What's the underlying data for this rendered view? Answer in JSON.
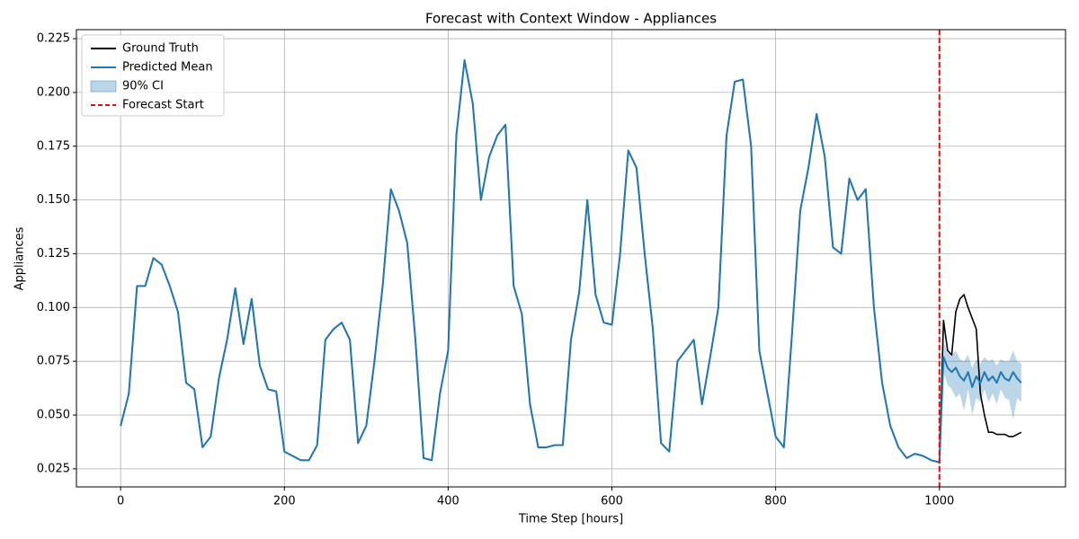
{
  "chart_data": {
    "type": "line",
    "title": "Forecast with Context Window - Appliances",
    "xlabel": "Time Step [hours]",
    "ylabel": "Appliances",
    "xlim": [
      -54,
      1154
    ],
    "ylim": [
      0.0166,
      0.2292
    ],
    "xticks": [
      0,
      200,
      400,
      600,
      800,
      1000
    ],
    "yticks": [
      0.025,
      {
        "value": 0.05,
        "label": "0.050"
      },
      0.075,
      {
        "value": 0.1,
        "label": "0.100"
      },
      0.125,
      {
        "value": 0.15,
        "label": "0.150"
      },
      0.175,
      {
        "value": 0.2,
        "label": "0.200"
      },
      0.225
    ],
    "grid": true,
    "legend": "upper left",
    "x": [
      0,
      10,
      20,
      30,
      40,
      50,
      60,
      70,
      80,
      90,
      100,
      110,
      120,
      130,
      140,
      150,
      160,
      170,
      180,
      190,
      200,
      210,
      220,
      230,
      240,
      250,
      260,
      270,
      280,
      290,
      300,
      310,
      320,
      330,
      340,
      350,
      360,
      370,
      380,
      390,
      400,
      410,
      420,
      430,
      440,
      450,
      460,
      470,
      480,
      490,
      500,
      510,
      520,
      530,
      540,
      550,
      560,
      570,
      580,
      590,
      600,
      610,
      620,
      630,
      640,
      650,
      660,
      670,
      680,
      690,
      700,
      710,
      720,
      730,
      740,
      750,
      760,
      770,
      780,
      790,
      800,
      810,
      820,
      830,
      840,
      850,
      860,
      870,
      880,
      890,
      900,
      910,
      920,
      930,
      940,
      950,
      960,
      970,
      980,
      990,
      1000,
      1005,
      1010,
      1015,
      1020,
      1025,
      1030,
      1035,
      1040,
      1045,
      1050,
      1055,
      1060,
      1065,
      1070,
      1075,
      1080,
      1085,
      1090,
      1095,
      1100
    ],
    "series": [
      {
        "name": "Ground Truth",
        "color": "#000000",
        "values": [
          0.045,
          0.06,
          0.11,
          0.11,
          0.123,
          0.12,
          0.11,
          0.098,
          0.065,
          0.062,
          0.035,
          0.04,
          0.067,
          0.085,
          0.109,
          0.083,
          0.104,
          0.073,
          0.062,
          0.061,
          0.033,
          0.031,
          0.029,
          0.029,
          0.036,
          0.085,
          0.09,
          0.093,
          0.085,
          0.037,
          0.045,
          0.075,
          0.11,
          0.155,
          0.145,
          0.13,
          0.085,
          0.03,
          0.029,
          0.06,
          0.08,
          0.18,
          0.215,
          0.195,
          0.15,
          0.17,
          0.18,
          0.185,
          0.11,
          0.097,
          0.055,
          0.035,
          0.035,
          0.036,
          0.036,
          0.085,
          0.107,
          0.15,
          0.106,
          0.093,
          0.092,
          0.125,
          0.173,
          0.165,
          0.125,
          0.09,
          0.037,
          0.033,
          0.075,
          0.08,
          0.085,
          0.055,
          0.077,
          0.1,
          0.18,
          0.205,
          0.206,
          0.175,
          0.08,
          0.06,
          0.04,
          0.035,
          0.088,
          0.145,
          0.165,
          0.19,
          0.17,
          0.128,
          0.125,
          0.16,
          0.15,
          0.155,
          0.1,
          0.065,
          0.045,
          0.035,
          0.03,
          0.032,
          0.031,
          0.029,
          0.028,
          0.094,
          0.08,
          0.078,
          0.098,
          0.104,
          0.106,
          0.1,
          0.095,
          0.09,
          0.06,
          0.05,
          0.042,
          0.042,
          0.041,
          0.041,
          0.041,
          0.04,
          0.04,
          0.041,
          0.042
        ]
      },
      {
        "name": "Predicted Mean",
        "color": "#1f77b4",
        "values": [
          0.045,
          0.06,
          0.11,
          0.11,
          0.123,
          0.12,
          0.11,
          0.098,
          0.065,
          0.062,
          0.035,
          0.04,
          0.067,
          0.085,
          0.109,
          0.083,
          0.104,
          0.073,
          0.062,
          0.061,
          0.033,
          0.031,
          0.029,
          0.029,
          0.036,
          0.085,
          0.09,
          0.093,
          0.085,
          0.037,
          0.045,
          0.075,
          0.11,
          0.155,
          0.145,
          0.13,
          0.085,
          0.03,
          0.029,
          0.06,
          0.08,
          0.18,
          0.215,
          0.195,
          0.15,
          0.17,
          0.18,
          0.185,
          0.11,
          0.097,
          0.055,
          0.035,
          0.035,
          0.036,
          0.036,
          0.085,
          0.107,
          0.15,
          0.106,
          0.093,
          0.092,
          0.125,
          0.173,
          0.165,
          0.125,
          0.09,
          0.037,
          0.033,
          0.075,
          0.08,
          0.085,
          0.055,
          0.077,
          0.1,
          0.18,
          0.205,
          0.206,
          0.175,
          0.08,
          0.06,
          0.04,
          0.035,
          0.088,
          0.145,
          0.165,
          0.19,
          0.17,
          0.128,
          0.125,
          0.16,
          0.15,
          0.155,
          0.1,
          0.065,
          0.045,
          0.035,
          0.03,
          0.032,
          0.031,
          0.029,
          0.028,
          0.077,
          0.072,
          0.07,
          0.072,
          0.068,
          0.066,
          0.07,
          0.063,
          0.068,
          0.065,
          0.07,
          0.066,
          0.068,
          0.065,
          0.07,
          0.067,
          0.066,
          0.07,
          0.067,
          0.065
        ]
      }
    ],
    "band": {
      "name": "90% CI",
      "color": "#1f77b4",
      "x": [
        1005,
        1010,
        1015,
        1020,
        1025,
        1030,
        1035,
        1040,
        1045,
        1050,
        1055,
        1060,
        1065,
        1070,
        1075,
        1080,
        1085,
        1090,
        1095,
        1100
      ],
      "lower": [
        0.07,
        0.064,
        0.062,
        0.058,
        0.06,
        0.052,
        0.062,
        0.05,
        0.058,
        0.056,
        0.062,
        0.056,
        0.06,
        0.055,
        0.062,
        0.058,
        0.057,
        0.048,
        0.058,
        0.056
      ],
      "upper": [
        0.084,
        0.079,
        0.078,
        0.08,
        0.076,
        0.075,
        0.078,
        0.072,
        0.076,
        0.074,
        0.077,
        0.075,
        0.076,
        0.073,
        0.076,
        0.075,
        0.075,
        0.08,
        0.075,
        0.074
      ]
    },
    "vline": {
      "name": "Forecast Start",
      "x": 1000,
      "color": "#ff0000"
    }
  }
}
